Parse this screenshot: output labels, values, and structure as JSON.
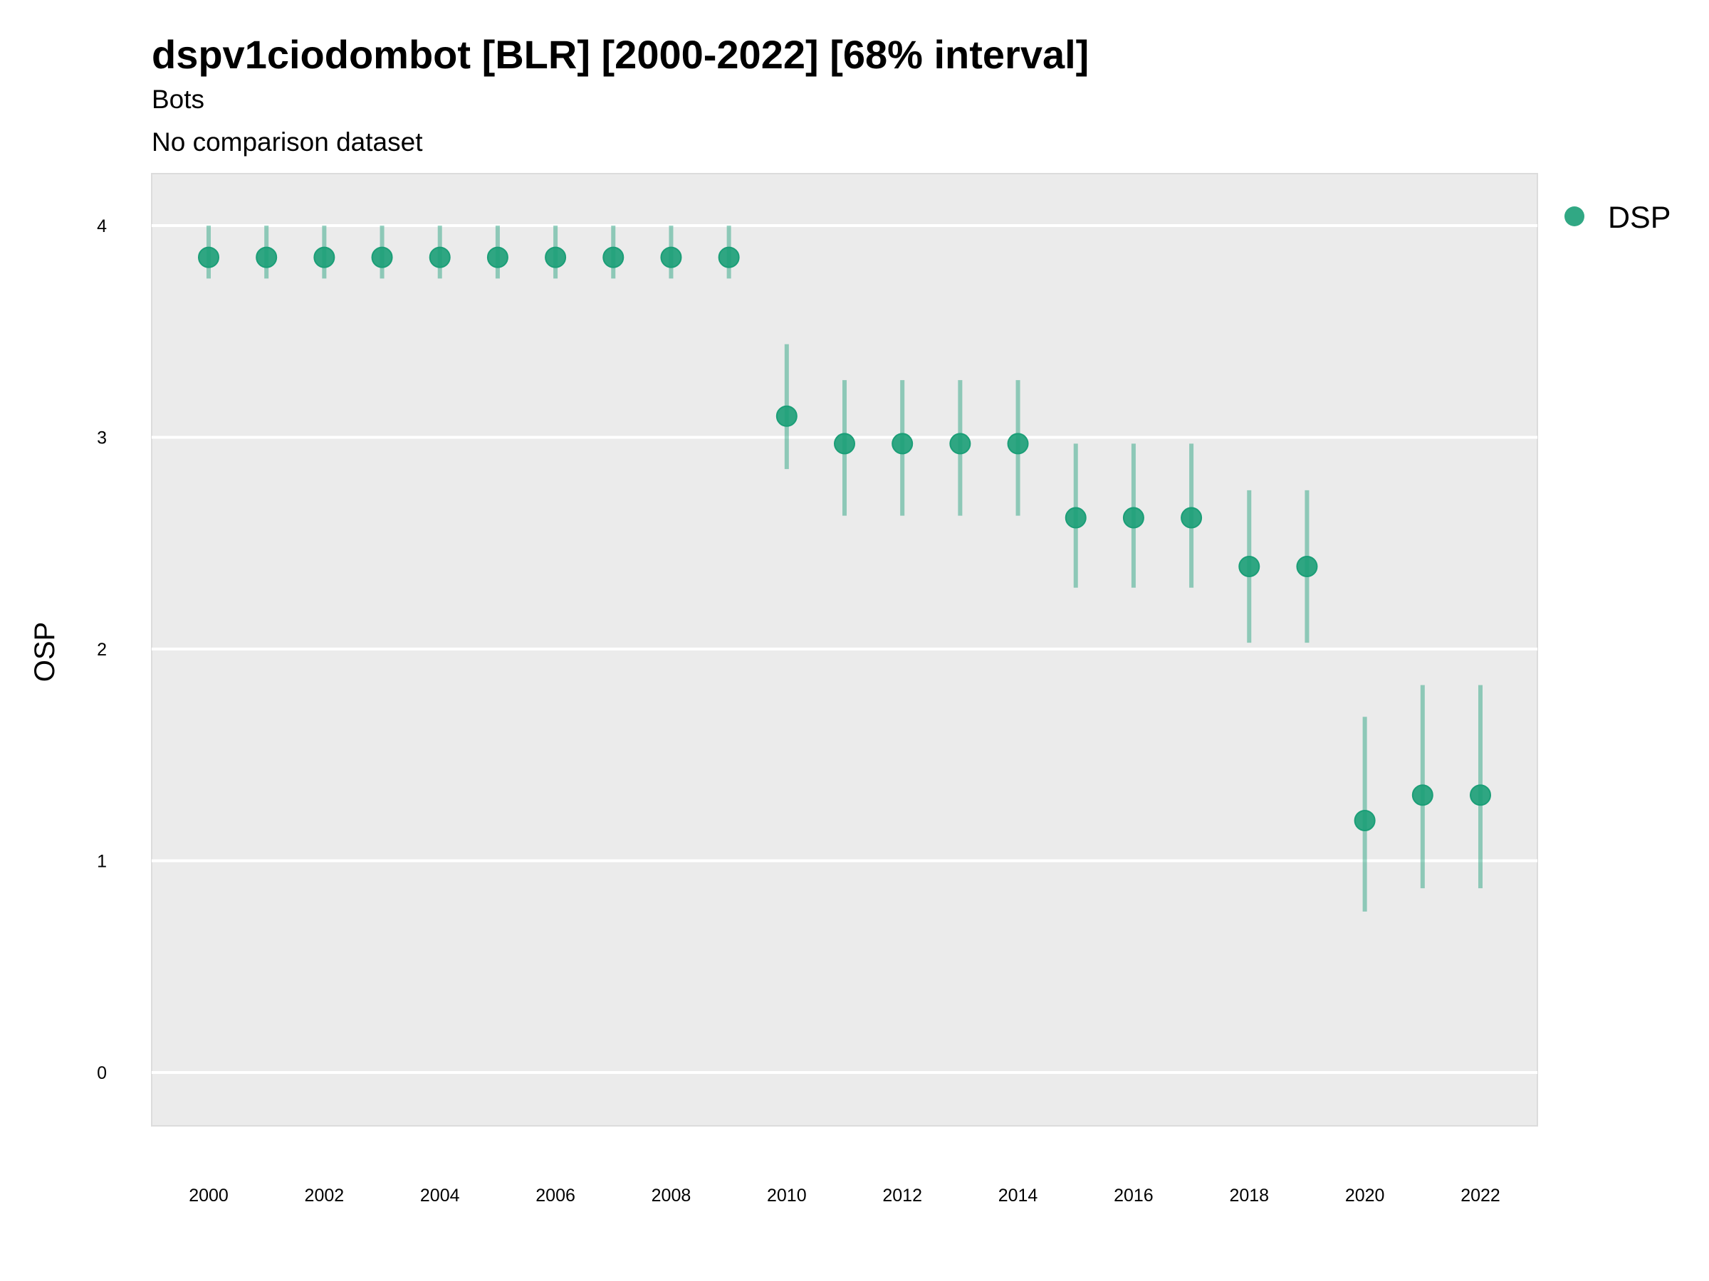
{
  "chart_data": {
    "type": "scatter",
    "title": "dspv1ciodombot [BLR] [2000-2022] [68% interval]",
    "subtitle": "Bots",
    "caption": "No comparison dataset",
    "xlabel": "",
    "ylabel": "OSP",
    "xlim": [
      1999,
      2023
    ],
    "ylim": [
      -0.25,
      4.25
    ],
    "grid": true,
    "legend_position": "right",
    "x_ticks": [
      "2000",
      "2002",
      "2004",
      "2006",
      "2008",
      "2010",
      "2012",
      "2014",
      "2016",
      "2018",
      "2020",
      "2022"
    ],
    "y_ticks": [
      "0",
      "1",
      "2",
      "3",
      "4"
    ],
    "series": [
      {
        "name": "DSP",
        "color": "#1b9e77",
        "x": [
          2000,
          2001,
          2002,
          2003,
          2004,
          2005,
          2006,
          2007,
          2008,
          2009,
          2010,
          2011,
          2012,
          2013,
          2014,
          2015,
          2016,
          2017,
          2018,
          2019,
          2020,
          2021,
          2022
        ],
        "y": [
          3.85,
          3.85,
          3.85,
          3.85,
          3.85,
          3.85,
          3.85,
          3.85,
          3.85,
          3.85,
          3.1,
          2.97,
          2.97,
          2.97,
          2.97,
          2.62,
          2.62,
          2.62,
          2.39,
          2.39,
          1.19,
          1.31,
          1.31
        ],
        "lower": [
          3.75,
          3.75,
          3.75,
          3.75,
          3.75,
          3.75,
          3.75,
          3.75,
          3.75,
          3.75,
          2.85,
          2.63,
          2.63,
          2.63,
          2.63,
          2.29,
          2.29,
          2.29,
          2.03,
          2.03,
          0.76,
          0.87,
          0.87
        ],
        "upper": [
          4.0,
          4.0,
          4.0,
          4.0,
          4.0,
          4.0,
          4.0,
          4.0,
          4.0,
          4.0,
          3.44,
          3.27,
          3.27,
          3.27,
          3.27,
          2.97,
          2.97,
          2.97,
          2.75,
          2.75,
          1.68,
          1.83,
          1.83
        ]
      }
    ]
  }
}
